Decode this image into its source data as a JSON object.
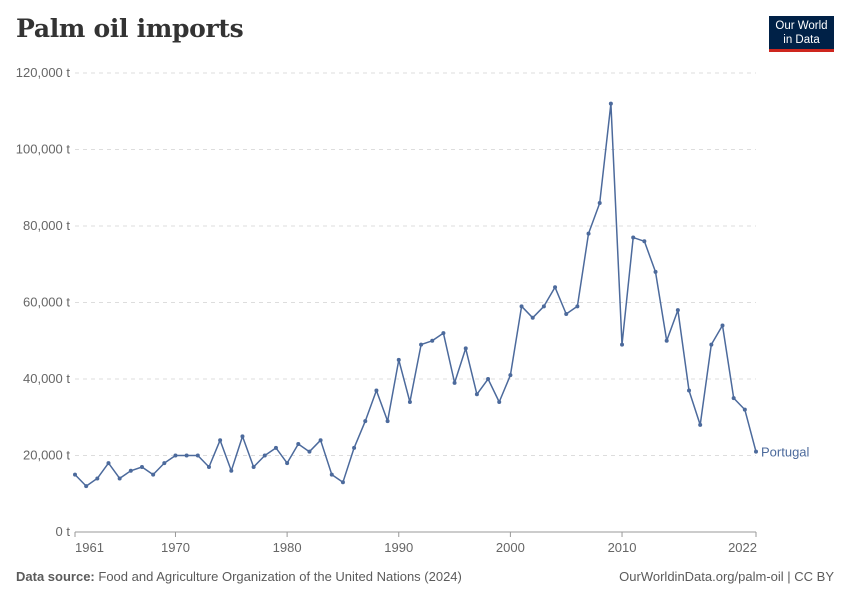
{
  "header": {
    "title": "Palm oil imports",
    "logo_line1": "Our World",
    "logo_line2": "in Data"
  },
  "footer": {
    "source_label": "Data source:",
    "source_text": "Food and Agriculture Organization of the United Nations (2024)",
    "credit": "OurWorldinData.org/palm-oil | CC BY"
  },
  "colors": {
    "series": "#4c6a9c",
    "grid": "#dddddd",
    "axis": "#999999"
  },
  "chart_data": {
    "type": "line",
    "title": "Palm oil imports",
    "x_ticks": [
      1961,
      1970,
      1980,
      1990,
      2000,
      2010,
      2022
    ],
    "y_ticks": [
      0,
      20000,
      40000,
      60000,
      80000,
      100000,
      120000
    ],
    "y_tick_labels": [
      "0 t",
      "20,000 t",
      "40,000 t",
      "60,000 t",
      "80,000 t",
      "100,000 t",
      "120,000 t"
    ],
    "xlim": [
      1961,
      2022
    ],
    "ylim": [
      0,
      120000
    ],
    "grid": "horizontal-dashed",
    "series": [
      {
        "name": "Portugal",
        "x": [
          1961,
          1962,
          1963,
          1964,
          1965,
          1966,
          1967,
          1968,
          1969,
          1970,
          1971,
          1972,
          1973,
          1974,
          1975,
          1976,
          1977,
          1978,
          1979,
          1980,
          1981,
          1982,
          1983,
          1984,
          1985,
          1986,
          1987,
          1988,
          1989,
          1990,
          1991,
          1992,
          1993,
          1994,
          1995,
          1996,
          1997,
          1998,
          1999,
          2000,
          2001,
          2002,
          2003,
          2004,
          2005,
          2006,
          2007,
          2008,
          2009,
          2010,
          2011,
          2012,
          2013,
          2014,
          2015,
          2016,
          2017,
          2018,
          2019,
          2020,
          2021,
          2022
        ],
        "values": [
          15000,
          12000,
          14000,
          18000,
          14000,
          16000,
          17000,
          15000,
          18000,
          20000,
          20000,
          20000,
          17000,
          24000,
          16000,
          25000,
          17000,
          20000,
          22000,
          18000,
          23000,
          21000,
          24000,
          15000,
          13000,
          22000,
          29000,
          37000,
          29000,
          45000,
          34000,
          49000,
          50000,
          52000,
          39000,
          48000,
          36000,
          40000,
          34000,
          41000,
          59000,
          56000,
          59000,
          64000,
          57000,
          59000,
          78000,
          86000,
          112000,
          49000,
          77000,
          76000,
          68000,
          50000,
          58000,
          37000,
          28000,
          49000,
          54000,
          35000,
          32000,
          21000
        ]
      }
    ]
  }
}
